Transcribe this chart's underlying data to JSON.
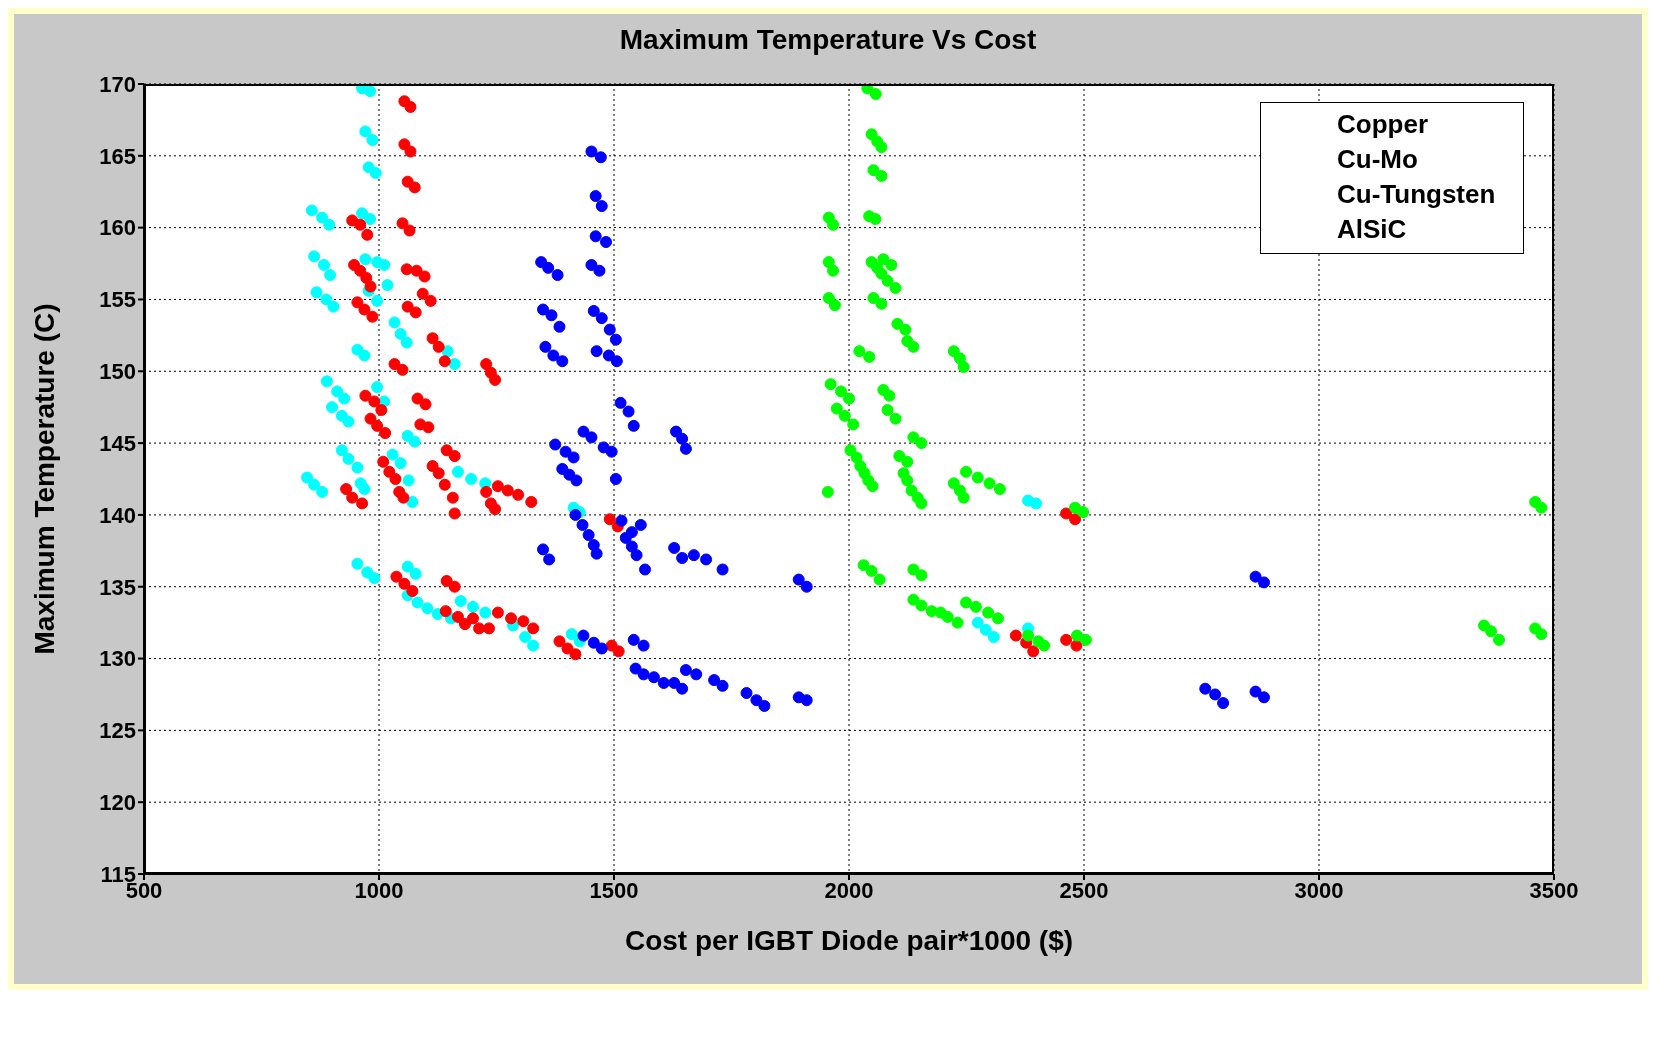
{
  "chart_data": {
    "type": "scatter",
    "title": "Maximum Temperature Vs Cost",
    "xlabel": "Cost per IGBT Diode pair*1000 ($)",
    "ylabel": "Maximum Temperature (C)",
    "xlim": [
      500,
      3500
    ],
    "xticks": [
      500,
      1000,
      1500,
      2000,
      2500,
      3000,
      3500
    ],
    "ylim": [
      115,
      170
    ],
    "yticks": [
      115,
      120,
      125,
      130,
      135,
      140,
      145,
      150,
      155,
      160,
      165,
      170
    ],
    "grid": true,
    "marker": "circle",
    "annotations": [
      "Copper",
      "Cu-Mo",
      "Cu-Tungsten",
      "AlSiC"
    ],
    "series": [
      {
        "color": "#00ffff",
        "x": [
          964,
          981,
          971,
          986,
          978,
          993,
          857,
          879,
          894,
          964,
          981,
          862,
          883,
          896,
          971,
          996,
          1011,
          867,
          888,
          903,
          978,
          996,
          1018,
          1033,
          1046,
          1059,
          954,
          969,
          1146,
          1161,
          889,
          911,
          926,
          996,
          1011,
          900,
          921,
          935,
          1061,
          1076,
          921,
          935,
          954,
          961,
          969,
          1029,
          1046,
          1063,
          1071,
          847,
          862,
          879,
          1168,
          1196,
          1226,
          1414,
          1427,
          954,
          975,
          990,
          1061,
          1078,
          1061,
          1082,
          1103,
          1125,
          1153,
          1174,
          1200,
          1226,
          1285,
          1311,
          1328,
          1410,
          1427,
          2381,
          2398,
          2274,
          2291,
          2308,
          2381
        ],
        "values": [
          169.7,
          169.5,
          166.7,
          166.1,
          164.2,
          163.8,
          161.2,
          160.7,
          160.2,
          161,
          160.6,
          158,
          157.4,
          156.7,
          157.8,
          157.6,
          157.4,
          155.5,
          155,
          154.5,
          155.6,
          154.9,
          156,
          153.4,
          152.6,
          152,
          151.5,
          151.1,
          151.4,
          150.5,
          149.3,
          148.6,
          148.1,
          148.9,
          147.9,
          147.5,
          146.9,
          146.5,
          145.5,
          145.1,
          144.5,
          143.9,
          143.3,
          142.2,
          141.8,
          144.2,
          143.6,
          142.4,
          140.9,
          142.6,
          142.1,
          141.6,
          143,
          142.5,
          142.2,
          140.5,
          140.2,
          136.6,
          136,
          135.6,
          136.4,
          135.9,
          134.4,
          133.9,
          133.5,
          133.1,
          132.8,
          134,
          133.6,
          133.2,
          132.3,
          131.5,
          130.9,
          131.7,
          131.2,
          141,
          140.8,
          132.5,
          132,
          131.5,
          132.1
        ]
      },
      {
        "color": "#ff0000",
        "x": [
          1054,
          1067,
          1054,
          1067,
          1061,
          1076,
          943,
          960,
          975,
          1050,
          1065,
          947,
          960,
          973,
          982,
          1059,
          1080,
          1097,
          954,
          969,
          986,
          1061,
          1078,
          1093,
          1110,
          1033,
          1050,
          1114,
          1127,
          1140,
          1228,
          1238,
          1247,
          971,
          990,
          1005,
          1082,
          1099,
          982,
          996,
          1013,
          1088,
          1105,
          1009,
          1022,
          1035,
          1043,
          1052,
          1114,
          1127,
          1140,
          1157,
          1161,
          930,
          943,
          964,
          1144,
          1161,
          1228,
          1238,
          1247,
          1253,
          1274,
          1296,
          1324,
          1491,
          1508,
          1037,
          1054,
          1071,
          1144,
          1161,
          1142,
          1168,
          1183,
          1200,
          1213,
          1234,
          1253,
          1281,
          1307,
          1328,
          1384,
          1401,
          1418,
          1495,
          1510,
          2355,
          2377,
          2392,
          2462,
          2481,
          2462,
          2484
        ],
        "values": [
          168.8,
          168.4,
          165.8,
          165.3,
          163.2,
          162.8,
          160.5,
          160.2,
          159.5,
          160.3,
          159.8,
          157.4,
          157,
          156.5,
          155.9,
          157.1,
          157,
          156.6,
          154.8,
          154.3,
          153.8,
          154.5,
          154.1,
          155.4,
          154.9,
          150.5,
          150.1,
          152.3,
          151.7,
          150.7,
          150.5,
          149.9,
          149.4,
          148.3,
          147.9,
          147.3,
          148.1,
          147.7,
          146.7,
          146.2,
          145.7,
          146.3,
          146.1,
          143.7,
          143,
          142.5,
          141.6,
          141.2,
          143.4,
          142.9,
          142.1,
          141.2,
          140.1,
          141.8,
          141.2,
          140.8,
          144.5,
          144.1,
          141.6,
          140.8,
          140.4,
          142,
          141.7,
          141.4,
          140.9,
          139.7,
          139.2,
          135.7,
          135.2,
          134.7,
          135.4,
          135,
          133.3,
          132.9,
          132.4,
          132.8,
          132.1,
          132.1,
          133.2,
          132.8,
          132.6,
          132.1,
          131.2,
          130.7,
          130.3,
          130.9,
          130.5,
          131.6,
          131.1,
          130.5,
          140.1,
          139.7,
          131.3,
          130.9
        ]
      },
      {
        "color": "#0000ff",
        "x": [
          1452,
          1472,
          1461,
          1474,
          1461,
          1483,
          1345,
          1360,
          1380,
          1452,
          1469,
          1349,
          1367,
          1384,
          1457,
          1474,
          1491,
          1504,
          1354,
          1371,
          1390,
          1463,
          1489,
          1506,
          1514,
          1531,
          1542,
          1435,
          1452,
          1632,
          1645,
          1653,
          1375,
          1397,
          1414,
          1478,
          1495,
          1390,
          1405,
          1420,
          1504,
          1418,
          1433,
          1446,
          1457,
          1463,
          1349,
          1362,
          1516,
          1538,
          1557,
          1525,
          1538,
          1548,
          1566,
          1628,
          1645,
          1670,
          1696,
          1731,
          1893,
          1910,
          1435,
          1457,
          1474,
          1542,
          1563,
          1546,
          1563,
          1585,
          1606,
          1628,
          1645,
          1653,
          1675,
          1713,
          1731,
          1782,
          1803,
          1820,
          1893,
          1910,
          2758,
          2779,
          2796,
          2865,
          2883,
          2865,
          2883
        ],
        "values": [
          165.3,
          164.9,
          162.2,
          161.5,
          159.4,
          159,
          157.6,
          157.2,
          156.7,
          157.4,
          157,
          154.3,
          153.9,
          153.1,
          154.2,
          153.7,
          152.9,
          152.2,
          151.7,
          151.1,
          150.7,
          151.4,
          151.1,
          150.7,
          147.8,
          147.2,
          146.2,
          145.8,
          145.4,
          145.8,
          145.3,
          144.6,
          144.9,
          144.4,
          144,
          144.7,
          144.4,
          143.2,
          142.8,
          142.4,
          142.5,
          140,
          139.3,
          138.6,
          137.9,
          137.3,
          137.6,
          136.9,
          139.6,
          138.8,
          139.3,
          138.4,
          137.8,
          137.2,
          136.2,
          137.7,
          137,
          137.2,
          136.9,
          136.2,
          135.5,
          135,
          131.6,
          131.1,
          130.7,
          131.3,
          130.9,
          129.3,
          128.9,
          128.7,
          128.3,
          128.3,
          127.9,
          129.2,
          128.9,
          128.5,
          128.1,
          127.6,
          127.1,
          126.7,
          127.3,
          127.1,
          127.9,
          127.5,
          126.9,
          135.7,
          135.3,
          127.7,
          127.3
        ]
      },
      {
        "color": "#00ff00",
        "x": [
          2039,
          2057,
          2048,
          2060,
          2069,
          2052,
          2069,
          2043,
          2056,
          1957,
          1966,
          1957,
          1966,
          2048,
          2060,
          2073,
          2090,
          2069,
          1957,
          1970,
          2052,
          2069,
          2082,
          2099,
          2103,
          2120,
          2124,
          2137,
          2022,
          2043,
          2223,
          2236,
          2244,
          1961,
          1983,
          2000,
          2073,
          2086,
          1974,
          1991,
          2009,
          2082,
          2099,
          2137,
          2154,
          2003,
          2016,
          2024,
          2033,
          2041,
          2050,
          2107,
          2124,
          2116,
          2124,
          2133,
          2146,
          2154,
          1955,
          2223,
          2236,
          2244,
          2249,
          2274,
          2299,
          2321,
          2481,
          2498,
          2031,
          2048,
          2065,
          2137,
          2154,
          2137,
          2154,
          2176,
          2195,
          2210,
          2231,
          2249,
          2270,
          2296,
          2317,
          2381,
          2403,
          2415,
          2485,
          2504,
          3351,
          3366,
          3383,
          3460,
          3473,
          3460,
          3473
        ],
        "values": [
          169.7,
          169.3,
          166.5,
          166,
          165.6,
          164,
          163.6,
          160.8,
          160.6,
          160.7,
          160.2,
          157.6,
          157,
          157.6,
          157.2,
          157.8,
          157.4,
          156.8,
          155.1,
          154.6,
          155.1,
          154.7,
          156.3,
          155.8,
          153.3,
          152.9,
          152.1,
          151.7,
          151.4,
          151,
          151.4,
          150.9,
          150.3,
          149.1,
          148.6,
          148.1,
          148.7,
          148.3,
          147.4,
          146.9,
          146.3,
          147.3,
          146.7,
          145.4,
          145,
          144.5,
          144,
          143.4,
          142.9,
          142.4,
          142,
          144.1,
          143.7,
          142.9,
          142.4,
          141.7,
          141.2,
          140.8,
          141.6,
          142.2,
          141.7,
          141.2,
          143,
          142.6,
          142.2,
          141.8,
          140.5,
          140.2,
          136.5,
          136.1,
          135.5,
          136.2,
          135.8,
          134.1,
          133.7,
          133.3,
          133.2,
          132.9,
          132.5,
          133.9,
          133.6,
          133.2,
          132.8,
          131.6,
          131.2,
          130.9,
          131.6,
          131.3,
          132.3,
          131.9,
          131.3,
          132.1,
          131.7,
          140.9,
          140.5
        ]
      }
    ]
  }
}
